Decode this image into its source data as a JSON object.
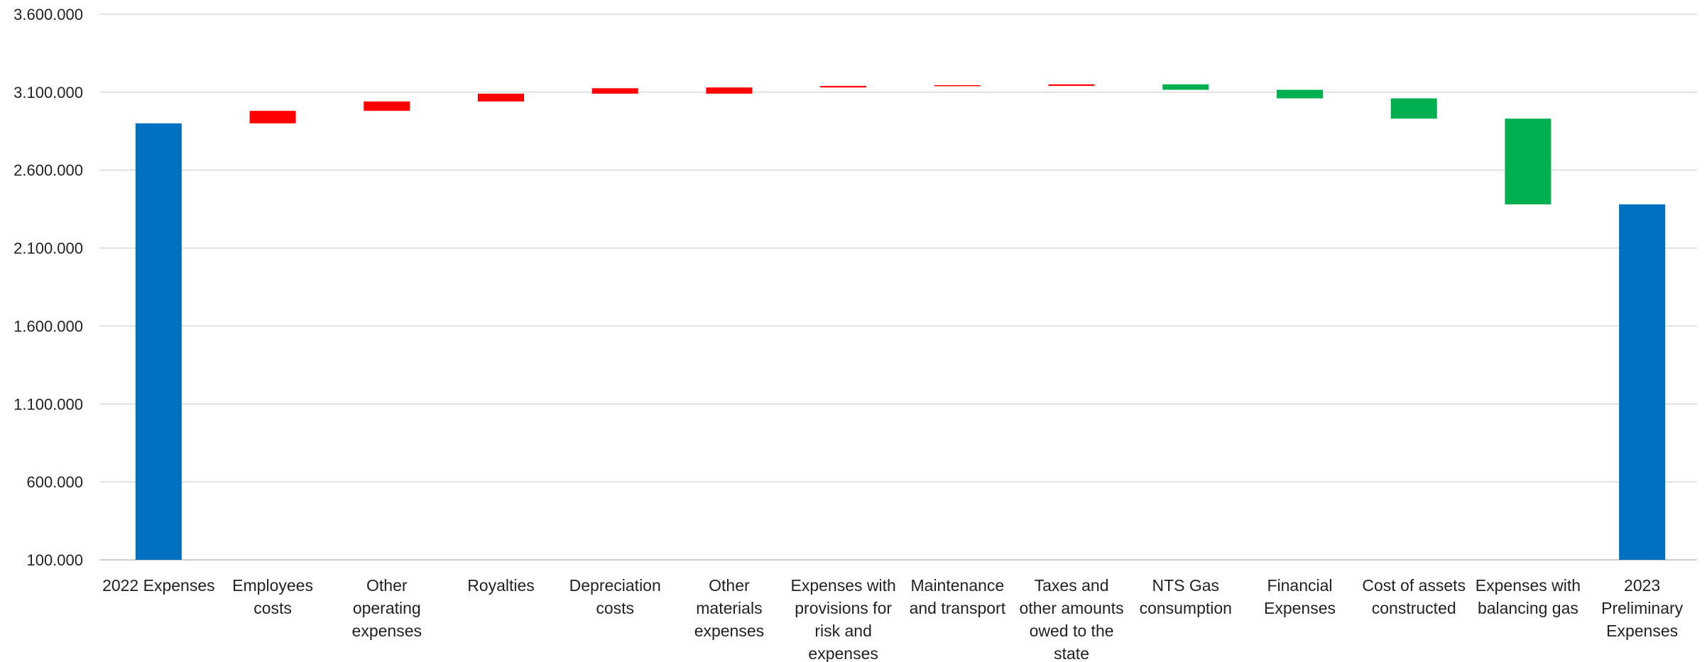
{
  "chart_data": {
    "type": "bar",
    "subtype": "waterfall",
    "title": "",
    "xlabel": "",
    "ylabel": "",
    "ylim": [
      100000,
      3600000
    ],
    "yticks": [
      100000,
      600000,
      1100000,
      1600000,
      2100000,
      2600000,
      3100000,
      3600000
    ],
    "ytick_labels": [
      "100.000",
      "600.000",
      "1.100.000",
      "1.600.000",
      "2.100.000",
      "2.600.000",
      "3.100.000",
      "3.600.000"
    ],
    "grid": true,
    "legend": "none",
    "colors": {
      "total": "#0070C0",
      "increase": "#FF0000",
      "decrease": "#00B050"
    },
    "categories": [
      [
        "2022 Expenses"
      ],
      [
        "Employees",
        "costs"
      ],
      [
        "Other",
        "operating",
        "expenses"
      ],
      [
        "Royalties"
      ],
      [
        "Depreciation",
        "costs"
      ],
      [
        "Other",
        "materials",
        "expenses"
      ],
      [
        "Expenses with",
        "provisions for",
        "risk and",
        "expenses"
      ],
      [
        "Maintenance",
        "and transport"
      ],
      [
        "Taxes and",
        "other amounts",
        "owed to the",
        "state"
      ],
      [
        "NTS Gas",
        "consumption"
      ],
      [
        "Financial",
        "Expenses"
      ],
      [
        "Cost of assets",
        "constructed"
      ],
      [
        "Expenses with",
        "balancing gas"
      ],
      [
        "2023",
        "Preliminary",
        "Expenses"
      ]
    ],
    "bars": [
      {
        "kind": "total",
        "start": 100000,
        "end": 2900000
      },
      {
        "kind": "increase",
        "start": 2900000,
        "end": 2980000
      },
      {
        "kind": "increase",
        "start": 2980000,
        "end": 3040000
      },
      {
        "kind": "increase",
        "start": 3040000,
        "end": 3090000
      },
      {
        "kind": "increase",
        "start": 3090000,
        "end": 3125000
      },
      {
        "kind": "increase",
        "start": 3090000,
        "end": 3130000
      },
      {
        "kind": "increase",
        "start": 3130000,
        "end": 3140000
      },
      {
        "kind": "increase",
        "start": 3140000,
        "end": 3145000
      },
      {
        "kind": "increase",
        "start": 3140000,
        "end": 3150000
      },
      {
        "kind": "decrease",
        "start": 3150000,
        "end": 3115000
      },
      {
        "kind": "decrease",
        "start": 3115000,
        "end": 3060000
      },
      {
        "kind": "decrease",
        "start": 3060000,
        "end": 2930000
      },
      {
        "kind": "decrease",
        "start": 2930000,
        "end": 2380000
      },
      {
        "kind": "total",
        "start": 100000,
        "end": 2380000
      }
    ]
  }
}
